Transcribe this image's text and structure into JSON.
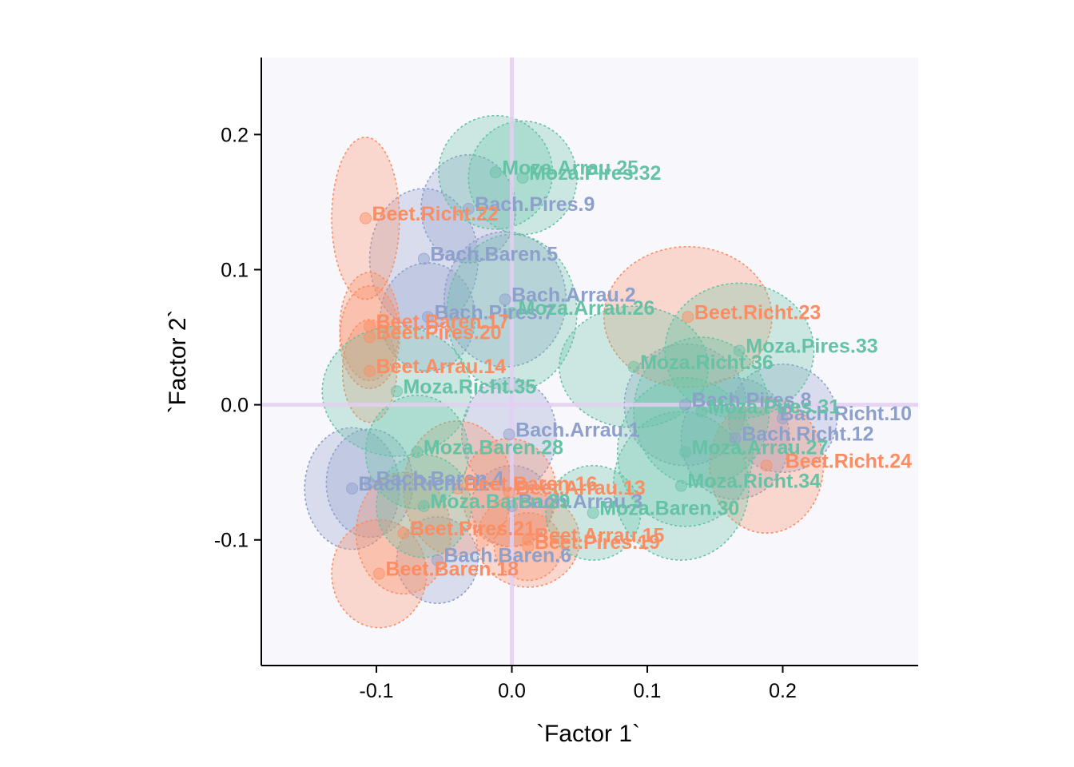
{
  "chart_data": {
    "type": "scatter",
    "xlabel": "`Factor 1`",
    "ylabel": "`Factor 2`",
    "xlim": [
      -0.185,
      0.3
    ],
    "ylim": [
      -0.193,
      0.257
    ],
    "xticks": [
      {
        "value": -0.1,
        "label": "-0.1"
      },
      {
        "value": 0.0,
        "label": "0.0"
      },
      {
        "value": 0.1,
        "label": "0.1"
      },
      {
        "value": 0.2,
        "label": "0.2"
      }
    ],
    "yticks": [
      {
        "value": -0.1,
        "label": "-0.1"
      },
      {
        "value": 0.0,
        "label": "0.0"
      },
      {
        "value": 0.1,
        "label": "0.1"
      },
      {
        "value": 0.2,
        "label": "0.2"
      }
    ],
    "reference_lines": {
      "x": 0.0,
      "y": 0.0,
      "color": "#e2d0f0"
    },
    "panel_background": "#f8f7fc",
    "grid": false,
    "legend": "none",
    "groups": [
      {
        "name": "Bach",
        "color": "#8da0cb"
      },
      {
        "name": "Beet",
        "color": "#fc8d62"
      },
      {
        "name": "Moza",
        "color": "#66c2a5"
      }
    ],
    "points": [
      {
        "label": "Bach.Arrau.1",
        "group": "Bach",
        "x": -0.002,
        "y": -0.022,
        "rx": 0.035,
        "ry": 0.042
      },
      {
        "label": "Bach.Arrau.2",
        "group": "Bach",
        "x": -0.005,
        "y": 0.078,
        "rx": 0.045,
        "ry": 0.05
      },
      {
        "label": "Bach.Arrau.3",
        "group": "Bach",
        "x": 0.0,
        "y": -0.075,
        "rx": 0.03,
        "ry": 0.03
      },
      {
        "label": "Bach.Baren.4",
        "group": "Bach",
        "x": -0.105,
        "y": -0.058,
        "rx": 0.032,
        "ry": 0.04
      },
      {
        "label": "Bach.Baren.5",
        "group": "Bach",
        "x": -0.065,
        "y": 0.108,
        "rx": 0.04,
        "ry": 0.052
      },
      {
        "label": "Bach.Baren.6",
        "group": "Bach",
        "x": -0.055,
        "y": -0.115,
        "rx": 0.03,
        "ry": 0.032
      },
      {
        "label": "Bach.Pires.7",
        "group": "Bach",
        "x": -0.062,
        "y": 0.065,
        "rx": 0.035,
        "ry": 0.04
      },
      {
        "label": "Bach.Pires.8",
        "group": "Bach",
        "x": 0.128,
        "y": 0.0,
        "rx": 0.045,
        "ry": 0.045
      },
      {
        "label": "Bach.Pires.9",
        "group": "Bach",
        "x": -0.032,
        "y": 0.145,
        "rx": 0.035,
        "ry": 0.04
      },
      {
        "label": "Bach.Richt.10",
        "group": "Bach",
        "x": 0.2,
        "y": -0.01,
        "rx": 0.04,
        "ry": 0.04
      },
      {
        "label": "Bach.Richt.11",
        "group": "Bach",
        "x": -0.118,
        "y": -0.062,
        "rx": 0.035,
        "ry": 0.045
      },
      {
        "label": "Bach.Richt.12",
        "group": "Bach",
        "x": 0.165,
        "y": -0.025,
        "rx": 0.04,
        "ry": 0.045
      },
      {
        "label": "Beet.Arrau.13",
        "group": "Beet",
        "x": -0.002,
        "y": -0.065,
        "rx": 0.035,
        "ry": 0.04
      },
      {
        "label": "Beet.Arrau.14",
        "group": "Beet",
        "x": -0.105,
        "y": 0.025,
        "rx": 0.02,
        "ry": 0.038
      },
      {
        "label": "Beet.Arrau.15",
        "group": "Beet",
        "x": 0.012,
        "y": -0.1,
        "rx": 0.038,
        "ry": 0.035
      },
      {
        "label": "Beet.Baren.16",
        "group": "Beet",
        "x": -0.04,
        "y": -0.062,
        "rx": 0.04,
        "ry": 0.05
      },
      {
        "label": "Beet.Baren.17",
        "group": "Beet",
        "x": -0.105,
        "y": 0.058,
        "rx": 0.022,
        "ry": 0.04
      },
      {
        "label": "Beet.Baren.18",
        "group": "Beet",
        "x": -0.098,
        "y": -0.125,
        "rx": 0.035,
        "ry": 0.04
      },
      {
        "label": "Beet.Pires.19",
        "group": "Beet",
        "x": 0.012,
        "y": -0.105,
        "rx": 0.025,
        "ry": 0.025
      },
      {
        "label": "Beet.Pires.20",
        "group": "Beet",
        "x": -0.105,
        "y": 0.05,
        "rx": 0.022,
        "ry": 0.038
      },
      {
        "label": "Beet.Pires.21",
        "group": "Beet",
        "x": -0.08,
        "y": -0.095,
        "rx": 0.035,
        "ry": 0.045
      },
      {
        "label": "Beet.Richt.22",
        "group": "Beet",
        "x": -0.108,
        "y": 0.138,
        "rx": 0.025,
        "ry": 0.06
      },
      {
        "label": "Beet.Richt.23",
        "group": "Beet",
        "x": 0.13,
        "y": 0.065,
        "rx": 0.062,
        "ry": 0.052
      },
      {
        "label": "Beet.Richt.24",
        "group": "Beet",
        "x": 0.188,
        "y": -0.045,
        "rx": 0.042,
        "ry": 0.05
      },
      {
        "label": "Moza.Arrau.25",
        "group": "Moza",
        "x": -0.012,
        "y": 0.172,
        "rx": 0.042,
        "ry": 0.042
      },
      {
        "label": "Moza.Arrau.26",
        "group": "Moza",
        "x": 0.0,
        "y": 0.068,
        "rx": 0.048,
        "ry": 0.058
      },
      {
        "label": "Moza.Arrau.27",
        "group": "Moza",
        "x": 0.128,
        "y": -0.035,
        "rx": 0.05,
        "ry": 0.055
      },
      {
        "label": "Moza.Baren.28",
        "group": "Moza",
        "x": -0.07,
        "y": -0.035,
        "rx": 0.038,
        "ry": 0.042
      },
      {
        "label": "Moza.Baren.29",
        "group": "Moza",
        "x": -0.065,
        "y": -0.075,
        "rx": 0.035,
        "ry": 0.038
      },
      {
        "label": "Moza.Baren.30",
        "group": "Moza",
        "x": 0.06,
        "y": -0.08,
        "rx": 0.035,
        "ry": 0.035
      },
      {
        "label": "Moza.Pires.31",
        "group": "Moza",
        "x": 0.14,
        "y": -0.005,
        "rx": 0.05,
        "ry": 0.055
      },
      {
        "label": "Moza.Pires.32",
        "group": "Moza",
        "x": 0.008,
        "y": 0.168,
        "rx": 0.04,
        "ry": 0.042
      },
      {
        "label": "Moza.Pires.33",
        "group": "Moza",
        "x": 0.168,
        "y": 0.04,
        "rx": 0.055,
        "ry": 0.05
      },
      {
        "label": "Moza.Richt.34",
        "group": "Moza",
        "x": 0.125,
        "y": -0.06,
        "rx": 0.05,
        "ry": 0.055
      },
      {
        "label": "Moza.Richt.35",
        "group": "Moza",
        "x": -0.085,
        "y": 0.01,
        "rx": 0.055,
        "ry": 0.048
      },
      {
        "label": "Moza.Richt.36",
        "group": "Moza",
        "x": 0.09,
        "y": 0.028,
        "rx": 0.055,
        "ry": 0.045
      }
    ]
  }
}
